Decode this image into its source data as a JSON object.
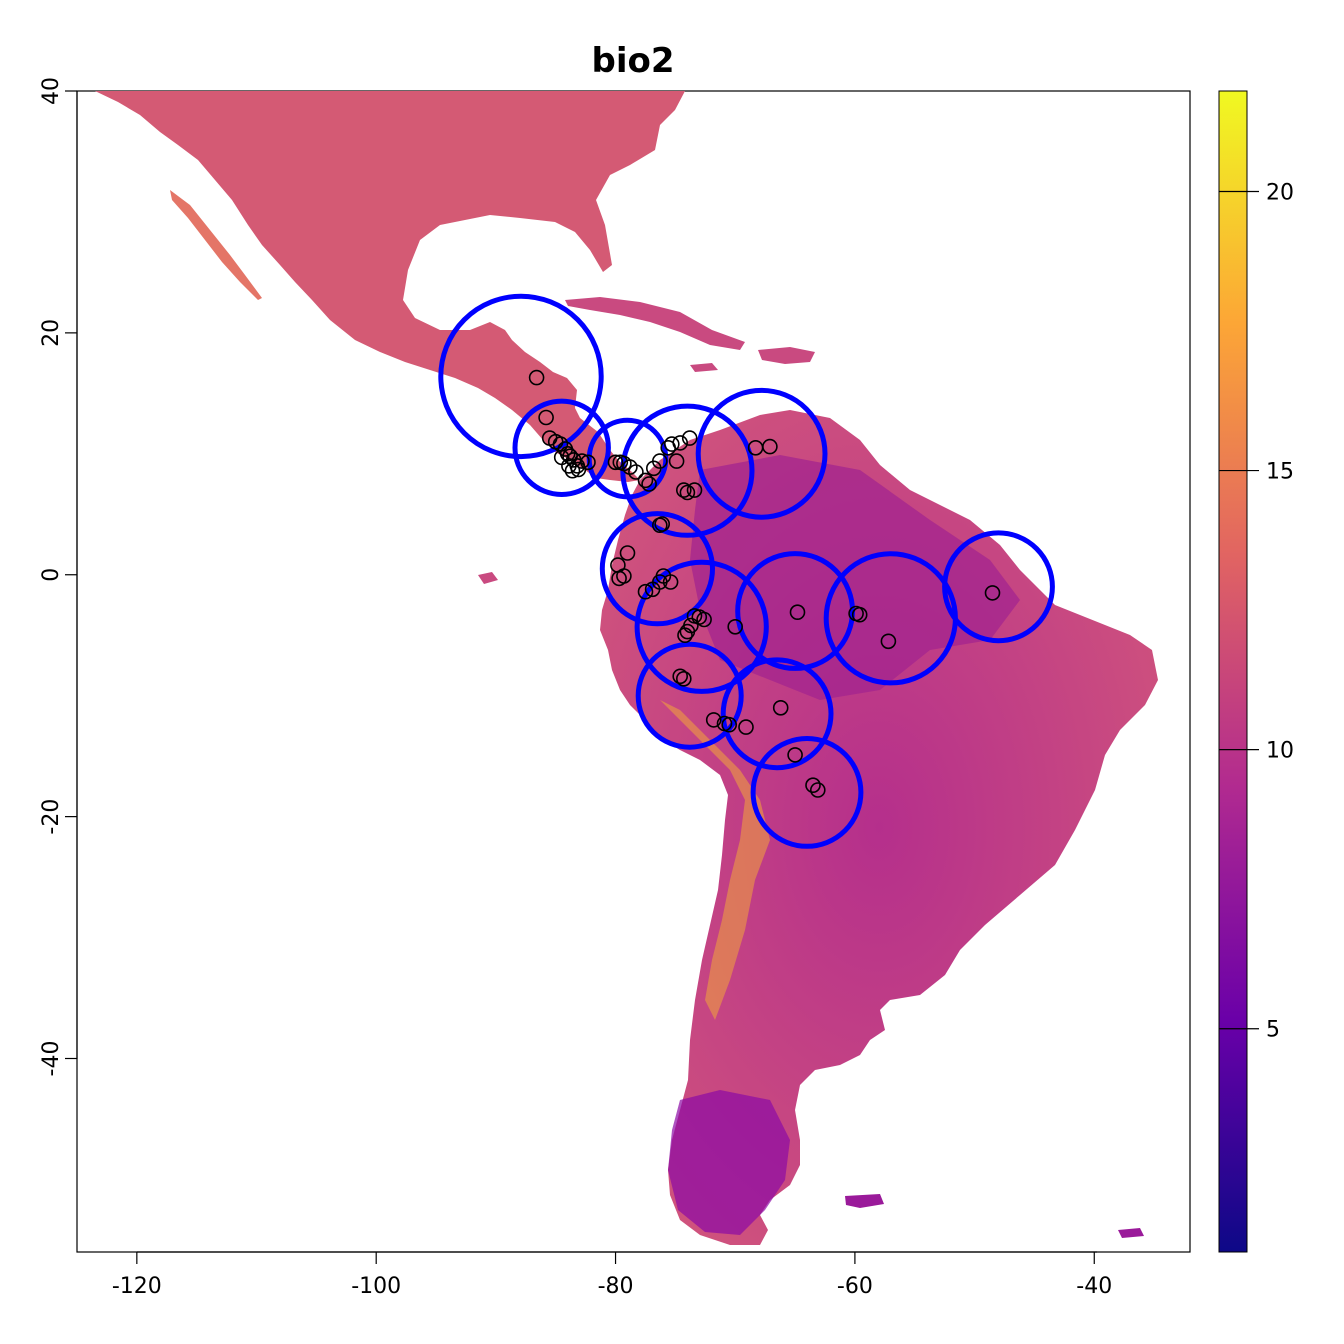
{
  "title": "bio2",
  "map": {
    "type": "raster-map",
    "x_range": [
      -125,
      -32
    ],
    "y_range": [
      -56,
      40
    ],
    "x_ticks": [
      -120,
      -100,
      -80,
      -60,
      -40
    ],
    "y_ticks": [
      40,
      20,
      0,
      -20,
      -40
    ],
    "x_tick_labels": [
      "-120",
      "-100",
      "-80",
      "-60",
      "-40"
    ],
    "y_tick_labels": [
      "40",
      "20",
      "0",
      "-20",
      "-40"
    ],
    "palette": "plasma",
    "land_color_range": [
      "#0d0887",
      "#7e03a8",
      "#cc4778",
      "#f89540",
      "#f0f921"
    ],
    "boundary_color": "#0000ff"
  },
  "legend": {
    "min": 1,
    "max": 21.8,
    "ticks": [
      5,
      10,
      15,
      20
    ],
    "tick_labels": [
      "5",
      "10",
      "15",
      "20"
    ],
    "colors": [
      "#0d0887",
      "#6a00a8",
      "#b12a90",
      "#e16462",
      "#fca636",
      "#f0f921"
    ]
  },
  "occurrences": [
    [
      -86.6,
      16.3
    ],
    [
      -85.8,
      13.0
    ],
    [
      -85.5,
      11.3
    ],
    [
      -85.0,
      11.0
    ],
    [
      -84.6,
      10.8
    ],
    [
      -84.2,
      10.4
    ],
    [
      -84.0,
      10.0
    ],
    [
      -83.8,
      9.8
    ],
    [
      -83.5,
      9.5
    ],
    [
      -83.9,
      9.0
    ],
    [
      -83.2,
      9.0
    ],
    [
      -82.8,
      9.4
    ],
    [
      -82.3,
      9.3
    ],
    [
      -83.6,
      8.6
    ],
    [
      -83.1,
      8.7
    ],
    [
      -84.5,
      9.7
    ],
    [
      -80.0,
      9.3
    ],
    [
      -79.6,
      9.3
    ],
    [
      -79.3,
      9.2
    ],
    [
      -78.8,
      8.9
    ],
    [
      -78.3,
      8.5
    ],
    [
      -77.5,
      7.8
    ],
    [
      -77.2,
      7.5
    ],
    [
      -76.8,
      8.8
    ],
    [
      -76.3,
      9.4
    ],
    [
      -75.6,
      10.5
    ],
    [
      -75.3,
      10.8
    ],
    [
      -74.9,
      9.4
    ],
    [
      -74.6,
      10.9
    ],
    [
      -73.8,
      11.3
    ],
    [
      -68.3,
      10.5
    ],
    [
      -67.1,
      10.6
    ],
    [
      -74.3,
      7.0
    ],
    [
      -74.0,
      6.8
    ],
    [
      -73.4,
      7.0
    ],
    [
      -76.3,
      4.1
    ],
    [
      -76.1,
      4.2
    ],
    [
      -79.0,
      1.8
    ],
    [
      -79.8,
      0.8
    ],
    [
      -79.7,
      -0.3
    ],
    [
      -79.3,
      -0.1
    ],
    [
      -76.0,
      -0.1
    ],
    [
      -76.3,
      -0.6
    ],
    [
      -75.4,
      -0.6
    ],
    [
      -77.5,
      -1.4
    ],
    [
      -76.9,
      -1.2
    ],
    [
      -73.4,
      -3.4
    ],
    [
      -73.0,
      -3.5
    ],
    [
      -72.6,
      -3.7
    ],
    [
      -73.7,
      -4.2
    ],
    [
      -74.0,
      -4.7
    ],
    [
      -74.2,
      -5.0
    ],
    [
      -70.0,
      -4.3
    ],
    [
      -64.8,
      -3.1
    ],
    [
      -59.9,
      -3.2
    ],
    [
      -59.6,
      -3.3
    ],
    [
      -57.2,
      -5.5
    ],
    [
      -48.5,
      -1.5
    ],
    [
      -74.6,
      -8.4
    ],
    [
      -74.3,
      -8.6
    ],
    [
      -71.8,
      -12.0
    ],
    [
      -70.9,
      -12.3
    ],
    [
      -70.5,
      -12.4
    ],
    [
      -69.1,
      -12.6
    ],
    [
      -66.2,
      -11.0
    ],
    [
      -65.0,
      -14.9
    ],
    [
      -63.5,
      -17.4
    ],
    [
      -63.1,
      -17.8
    ]
  ],
  "boundary_lobes": [
    [
      -87.9,
      16.4,
      6.7
    ],
    [
      -84.5,
      10.5,
      3.9
    ],
    [
      -79.0,
      9.6,
      3.2
    ],
    [
      -74.0,
      8.6,
      5.4
    ],
    [
      -67.8,
      10.0,
      5.3
    ],
    [
      -76.5,
      0.5,
      4.6
    ],
    [
      -72.8,
      -4.3,
      5.4
    ],
    [
      -65.0,
      -3.0,
      4.8
    ],
    [
      -57.0,
      -3.6,
      5.4
    ],
    [
      -48.0,
      -1.0,
      4.5
    ],
    [
      -73.8,
      -10.0,
      4.3
    ],
    [
      -66.5,
      -11.5,
      4.5
    ],
    [
      -64.0,
      -18.0,
      4.5
    ]
  ]
}
